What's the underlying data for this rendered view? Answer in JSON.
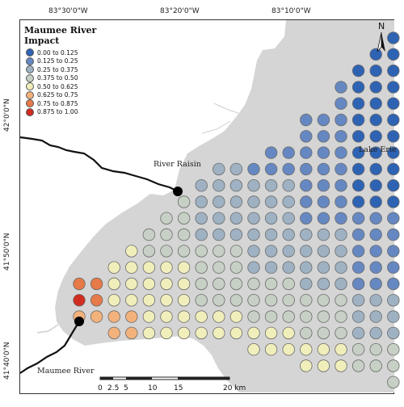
{
  "map": {
    "title": "Maumee River Impact",
    "legend": [
      {
        "label": "0.00 to 0.125",
        "color": "#2e63b4"
      },
      {
        "label": "0.125 to 0.25",
        "color": "#6688c2"
      },
      {
        "label": "0.25 to 0.375",
        "color": "#9fb2c3"
      },
      {
        "label": "0.375 to 0.50",
        "color": "#c7d0c5"
      },
      {
        "label": "0.50 to 0.625",
        "color": "#f0eeba"
      },
      {
        "label": "0.625 to 0.75",
        "color": "#f3b27b"
      },
      {
        "label": "0.75 to 0.875",
        "color": "#e67a48"
      },
      {
        "label": "0.875 to 1.00",
        "color": "#d02c20"
      }
    ],
    "top_coords": [
      "83°30'0\"W",
      "83°20'0\"W",
      "83°10'0\"W"
    ],
    "left_coords": [
      "42°0'0\"N",
      "41°50'0\"N",
      "41°40'0\"N"
    ],
    "places": {
      "river_raisin": "River Raisin",
      "lake_erie": "Lake Erie",
      "maumee_river": "Maumee River"
    },
    "north_label": "N",
    "scale_labels": [
      "0",
      "2.5",
      "5",
      "10",
      "15",
      "20 km"
    ],
    "colors": {
      "land_water": "#d5d5d5",
      "river": "#111111",
      "point_outline": "#6b6b6b",
      "source_point": "#000000"
    },
    "icons": [
      "north-arrow-icon"
    ]
  }
}
